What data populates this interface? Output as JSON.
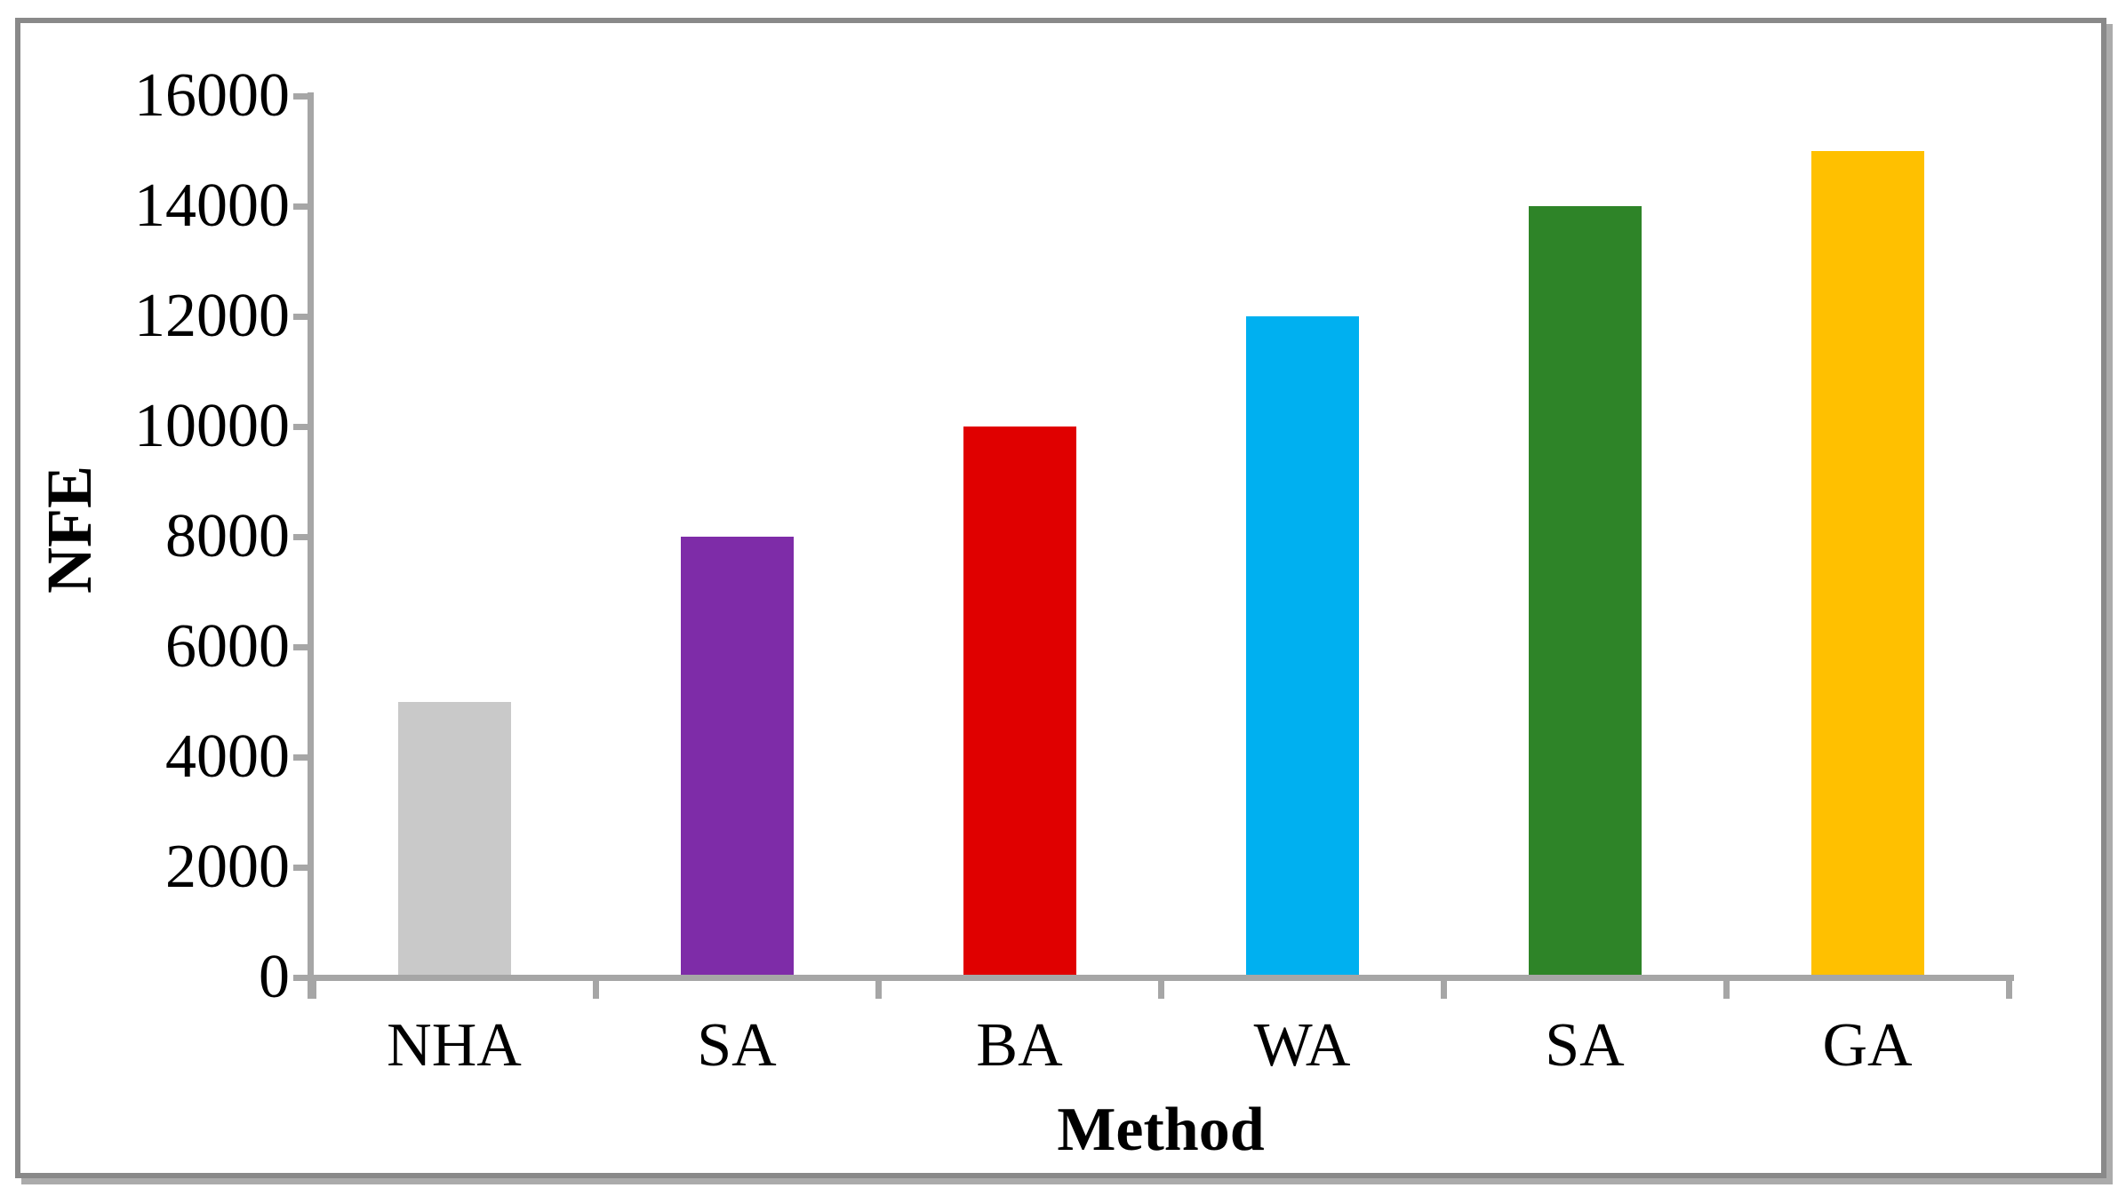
{
  "chart_data": {
    "type": "bar",
    "title": "",
    "xlabel": "Method",
    "ylabel": "NFE",
    "categories": [
      "NHA",
      "SA",
      "BA",
      "WA",
      "SA",
      "GA"
    ],
    "values": [
      5000,
      8000,
      10000,
      12000,
      14000,
      15000
    ],
    "bar_colors": [
      "#C9C9C9",
      "#7E2CA8",
      "#E00000",
      "#00B0F0",
      "#2E8428",
      "#FFC000"
    ],
    "ylim": [
      0,
      16000
    ],
    "ytick_interval": 2000,
    "ytick_labels": [
      "0",
      "2000",
      "4000",
      "6000",
      "8000",
      "10000",
      "12000",
      "14000",
      "16000"
    ],
    "grid": false,
    "legend": "none",
    "axis_color": "#A6A6A6",
    "frame_border_color": "#898989",
    "frame_shadow_color": "#ABABAB",
    "text_color": "#000000"
  }
}
